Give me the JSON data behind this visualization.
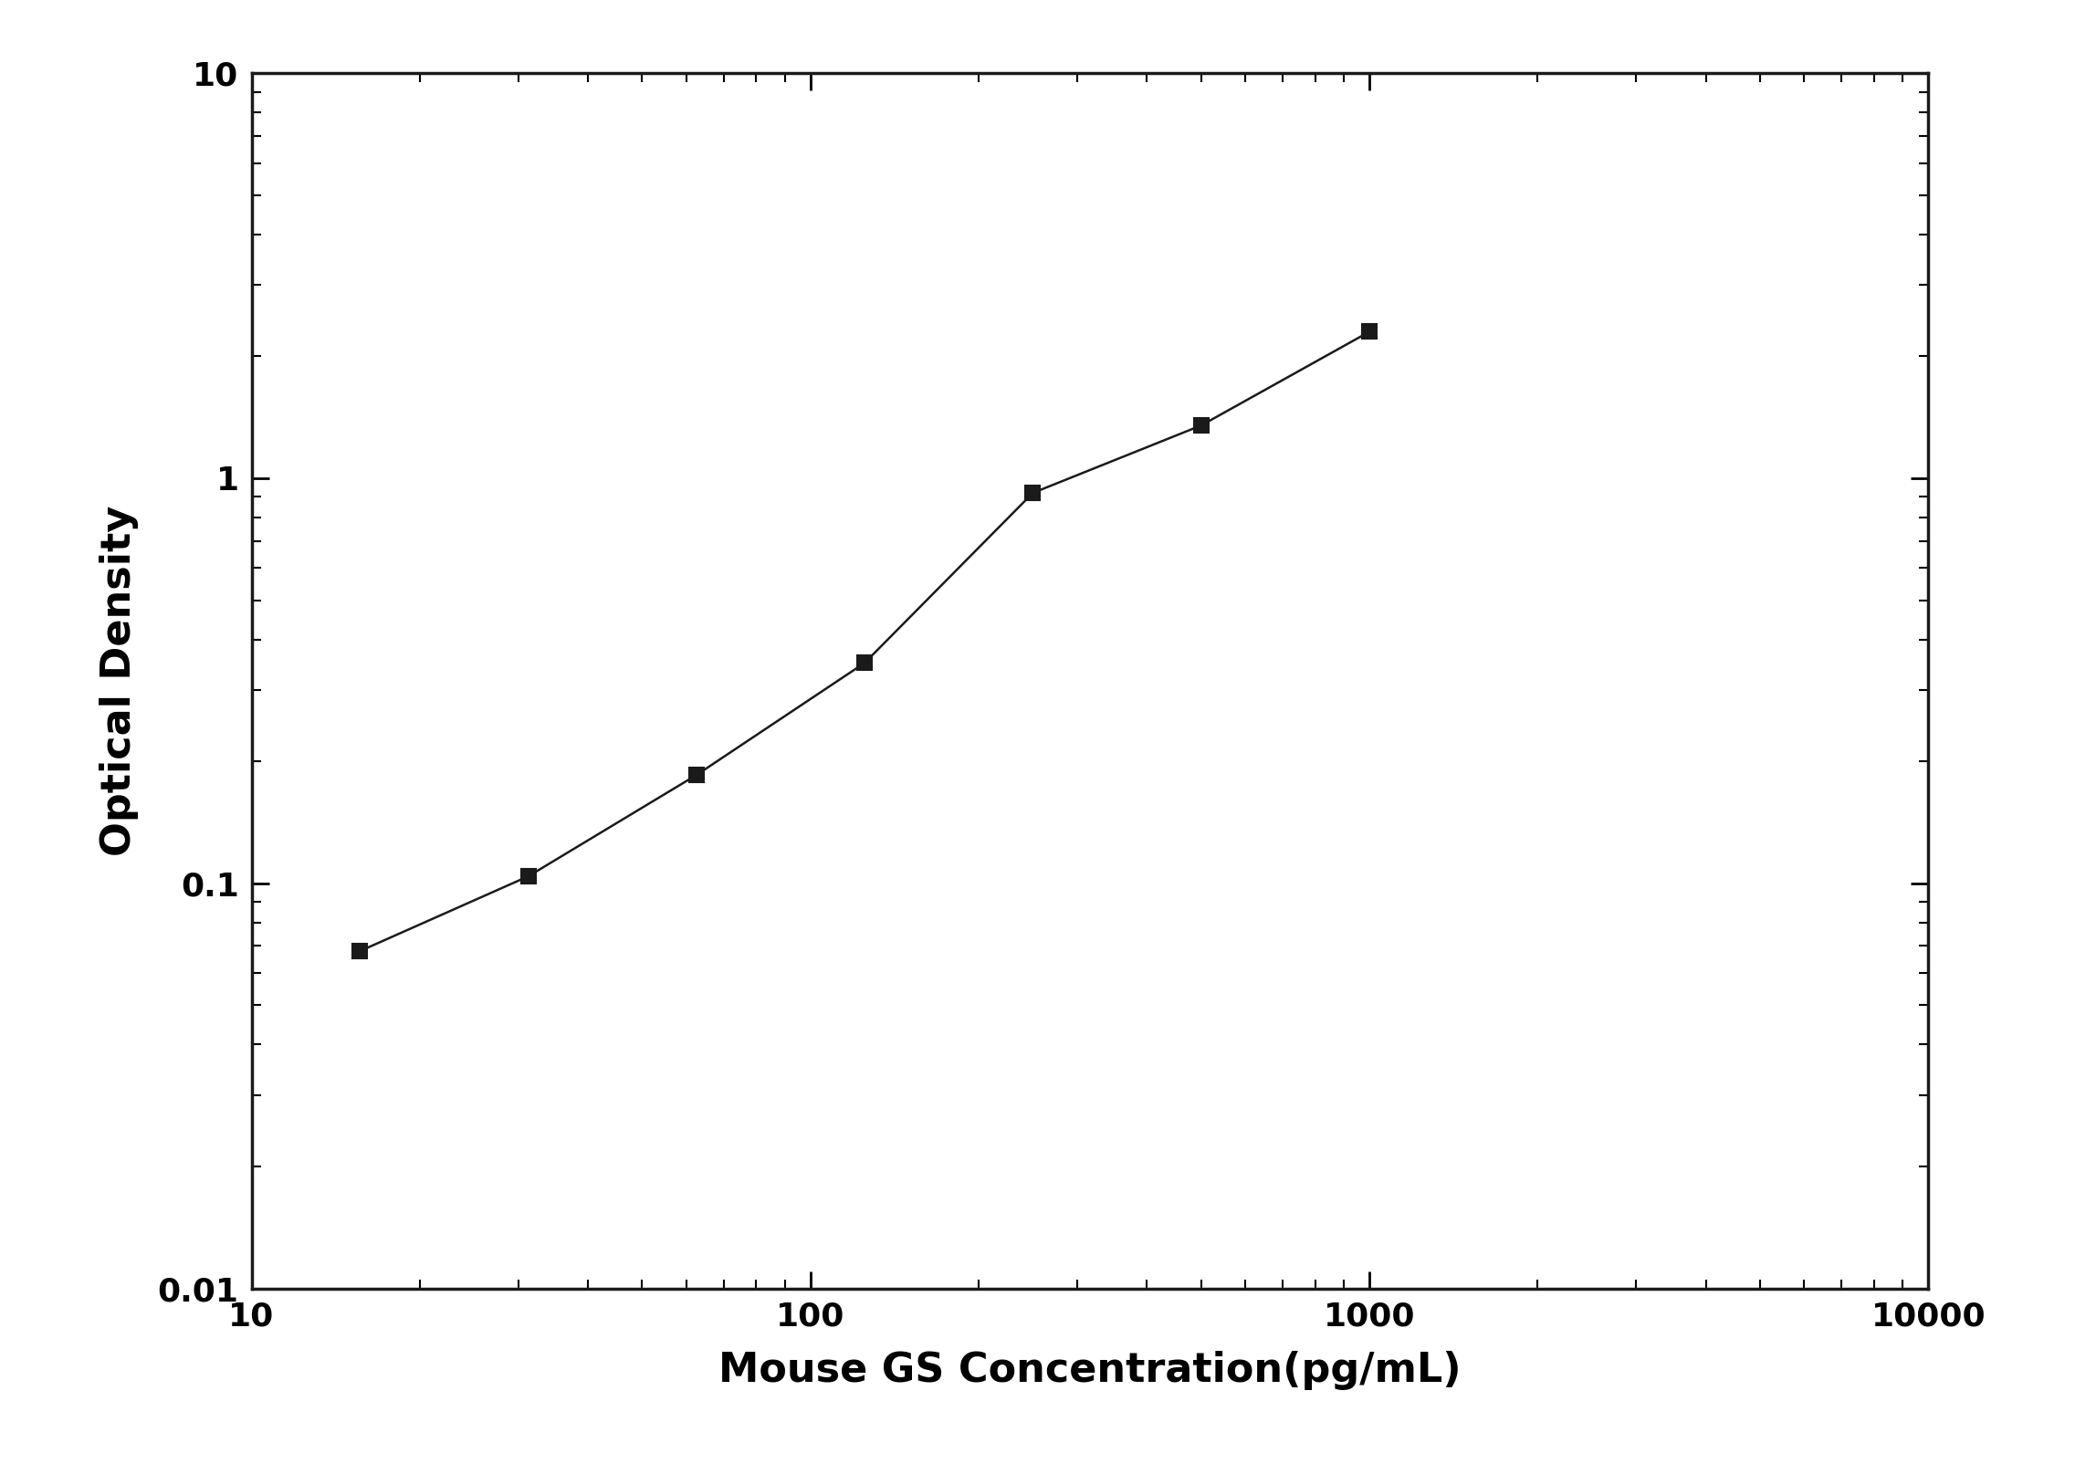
{
  "x": [
    15.625,
    31.25,
    62.5,
    125,
    250,
    500,
    1000
  ],
  "y": [
    0.068,
    0.104,
    0.185,
    0.35,
    0.92,
    1.35,
    2.3
  ],
  "xlim": [
    10,
    10000
  ],
  "ylim": [
    0.01,
    10
  ],
  "xlabel": "Mouse GS Concentration(pg/mL)",
  "ylabel": "Optical Density",
  "line_color": "#1a1a1a",
  "marker": "s",
  "marker_color": "#1a1a1a",
  "marker_size": 12,
  "line_width": 1.8,
  "xlabel_fontsize": 32,
  "ylabel_fontsize": 32,
  "tick_fontsize": 26,
  "background_color": "#ffffff",
  "fig_width": 22.96,
  "fig_height": 16.04,
  "dpi": 100
}
